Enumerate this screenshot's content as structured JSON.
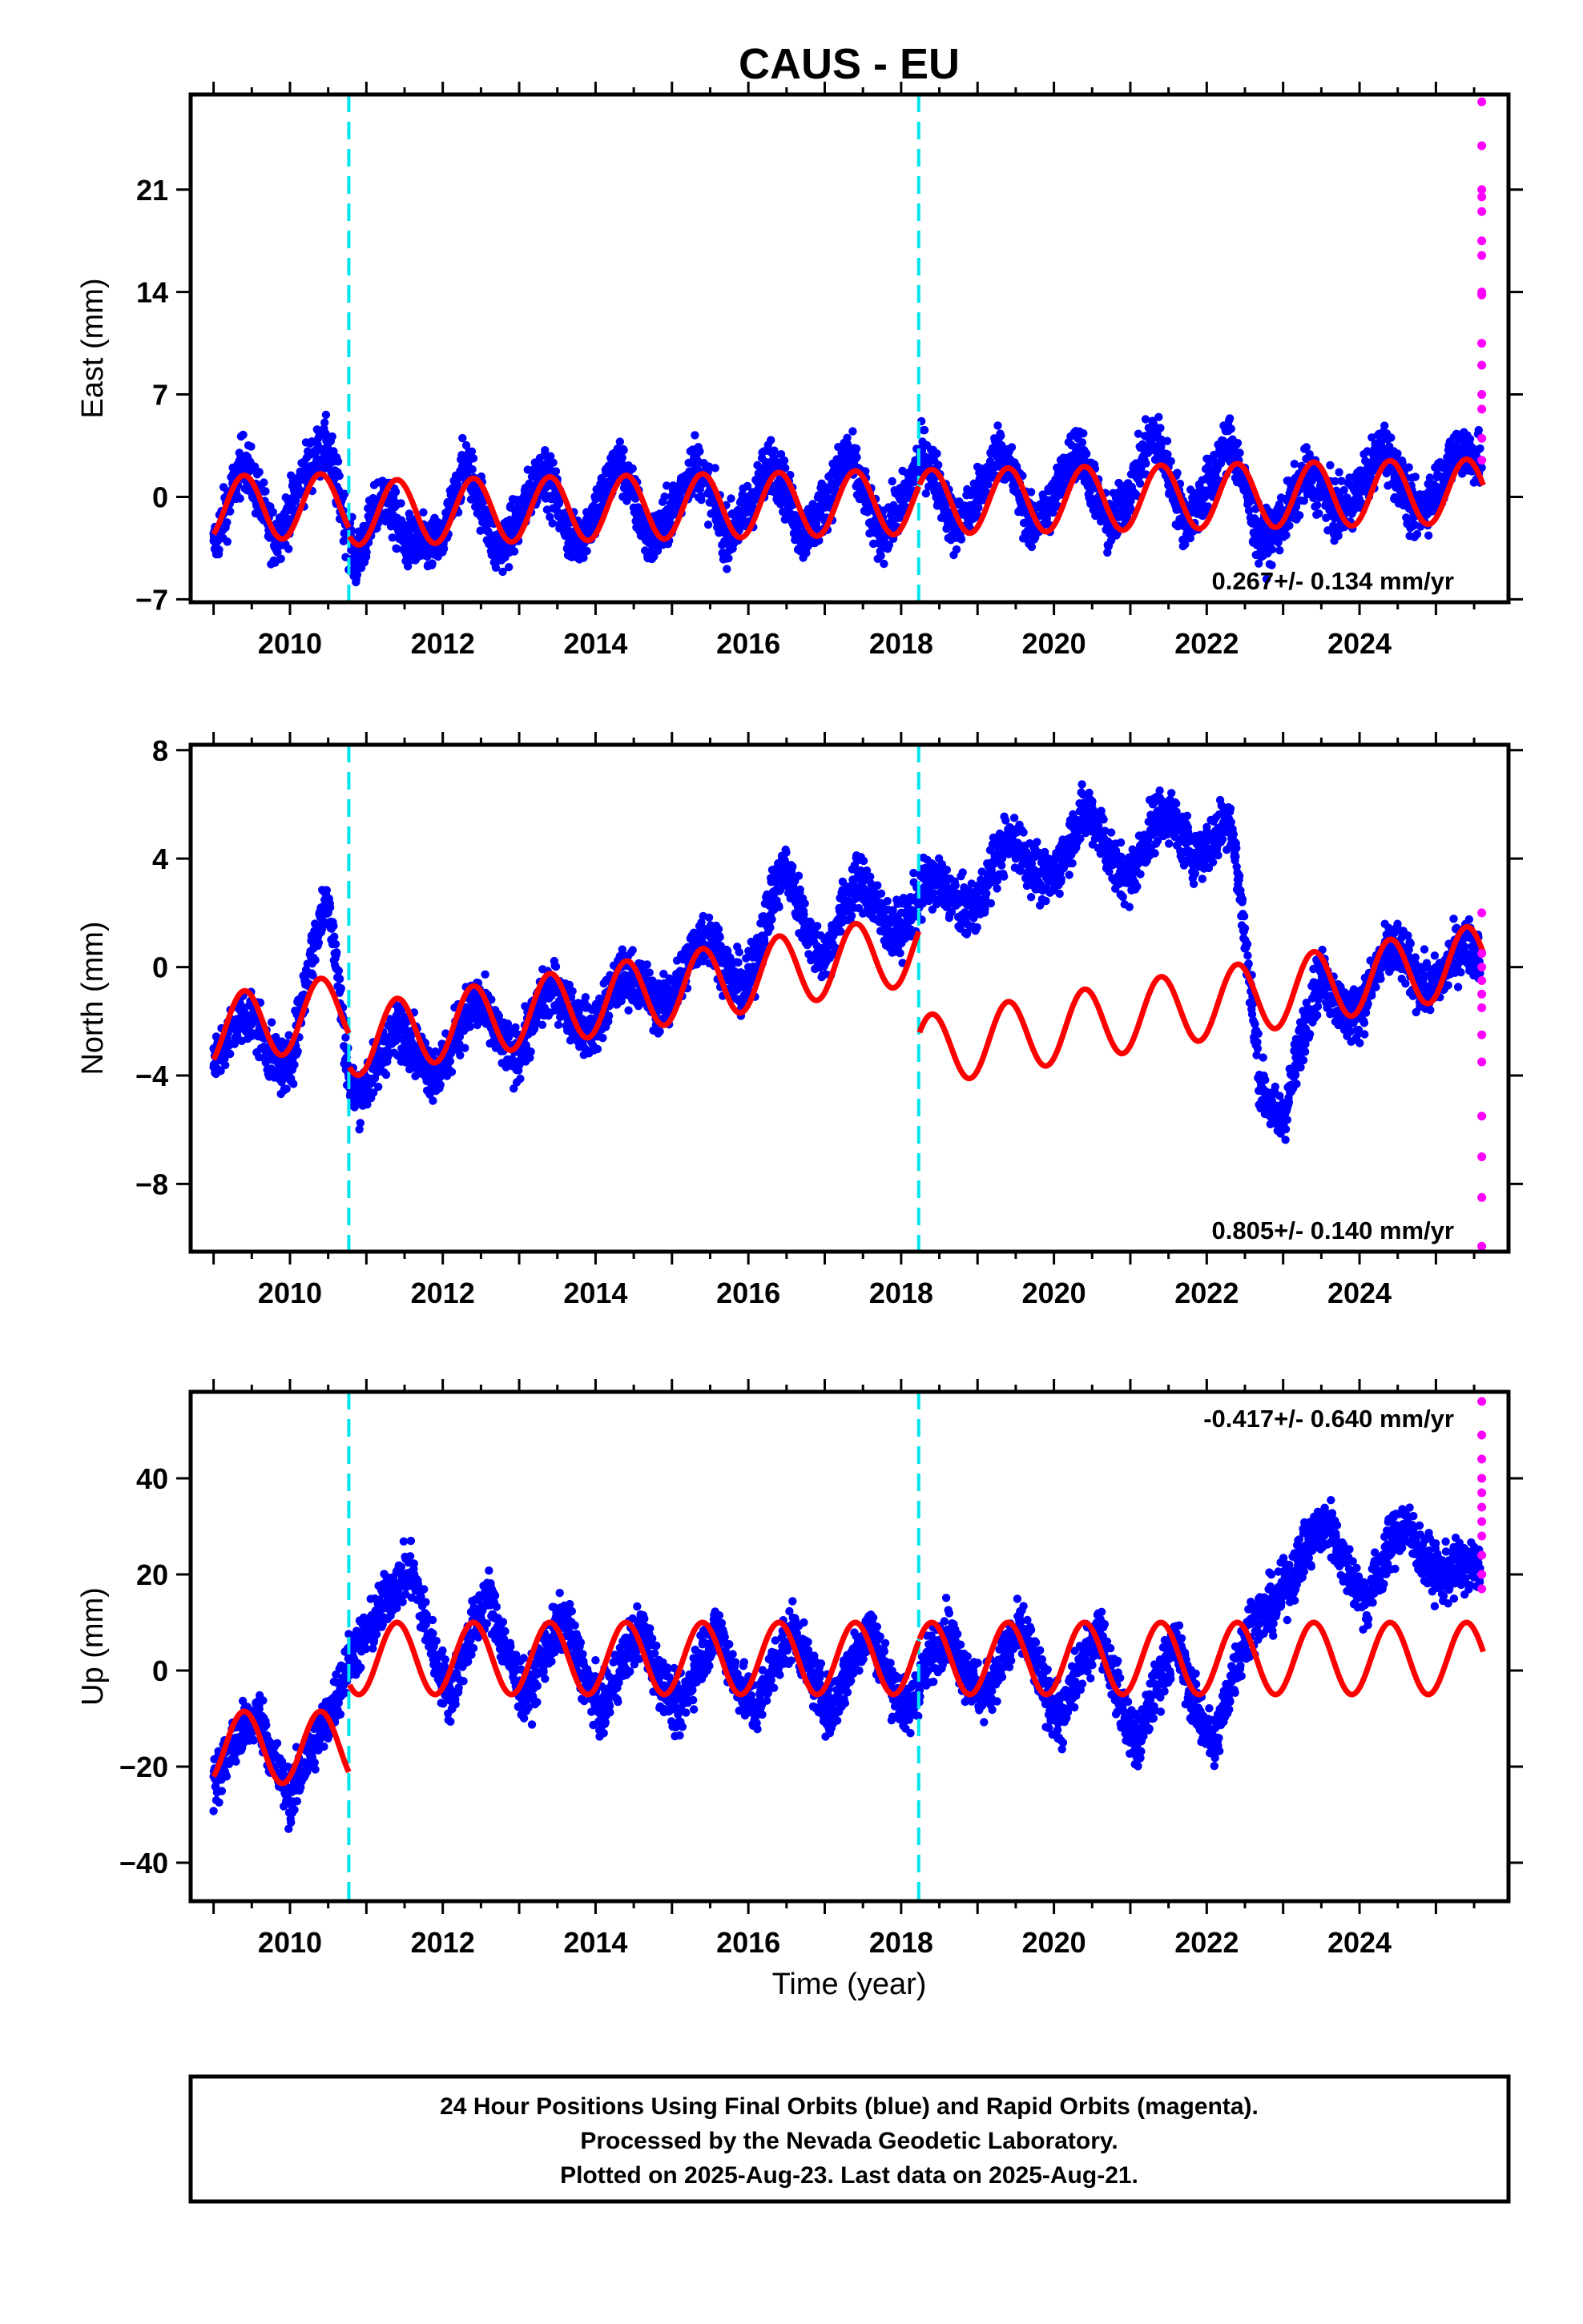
{
  "title": "CAUS - EU",
  "colors": {
    "final": "#0000ff",
    "rapid": "#ff00ff",
    "model": "#ff0000",
    "break": "#00e5ee",
    "frame": "#000000"
  },
  "x_axis": {
    "label": "Time (year)",
    "range": [
      2008.7,
      2025.95
    ],
    "ticks": [
      2010,
      2012,
      2014,
      2016,
      2018,
      2020,
      2022,
      2024
    ],
    "tick_labels": [
      "2010",
      "2012",
      "2014",
      "2016",
      "2018",
      "2020",
      "2022",
      "2024"
    ],
    "minor_step": 0.5
  },
  "breaks": [
    2010.77,
    2018.23
  ],
  "footer": {
    "line1": "24 Hour Positions Using Final Orbits (blue) and Rapid Orbits (magenta).",
    "line2": "Processed by the Nevada Geodetic Laboratory.",
    "line3": "Plotted on 2025-Aug-23. Last data on 2025-Aug-21."
  },
  "chart_data": [
    {
      "type": "scatter",
      "component": "East",
      "ylabel": "East (mm)",
      "ylim": [
        -7.2,
        27.5
      ],
      "yticks": [
        -7,
        0,
        7,
        14,
        21
      ],
      "ytick_labels": [
        "−7",
        "0",
        "7",
        "14",
        "21"
      ],
      "rate_text": "0.267+/- 0.134 mm/yr",
      "rate_position": "bottom-right",
      "series": [
        {
          "name": "Final Orbits",
          "color": "blue",
          "x": [
            2009.0,
            2009.4,
            2009.8,
            2010.2,
            2010.5,
            2010.85,
            2011.2,
            2011.5,
            2012.0,
            2012.3,
            2012.7,
            2013.3,
            2013.7,
            2014.3,
            2014.7,
            2015.3,
            2015.7,
            2016.3,
            2016.7,
            2017.3,
            2017.7,
            2018.3,
            2018.7,
            2019.3,
            2019.7,
            2020.3,
            2020.7,
            2021.3,
            2021.7,
            2022.3,
            2022.7,
            2023.3,
            2023.7,
            2024.3,
            2024.7,
            2025.3,
            2025.6
          ],
          "y": [
            -3,
            2,
            -2.5,
            1.5,
            3,
            -4,
            0,
            -3.5,
            -2.5,
            2,
            -3.5,
            1.5,
            -3,
            2,
            -3,
            2,
            -2.5,
            2,
            -2.5,
            2.5,
            -2.5,
            2.5,
            -2,
            3,
            -2,
            3,
            -2,
            4,
            -1.5,
            3.5,
            -3,
            1,
            -1,
            3,
            -1,
            3,
            2
          ]
        },
        {
          "name": "Rapid Orbits",
          "color": "magenta",
          "x": [
            2025.6,
            2025.6,
            2025.6,
            2025.6,
            2025.6,
            2025.6,
            2025.6,
            2025.6,
            2025.6,
            2025.6,
            2025.6,
            2025.6,
            2025.6,
            2025.6,
            2025.6
          ],
          "y": [
            27,
            24,
            21,
            20.5,
            19.5,
            17.5,
            16.5,
            14,
            13.8,
            10.5,
            9,
            7,
            6,
            4,
            2.5
          ]
        }
      ],
      "model": {
        "name": "Model fit",
        "offset": -0.8,
        "trend_mm_per_yr": 0.1,
        "annual_amp": 2.2,
        "steps": [
          {
            "year": 2010.77,
            "size": -0.5
          },
          {
            "year": 2018.23,
            "size": 0
          }
        ]
      }
    },
    {
      "type": "scatter",
      "component": "North",
      "ylabel": "North (mm)",
      "ylim": [
        -10.5,
        8.2
      ],
      "yticks": [
        -8,
        -4,
        0,
        4,
        8
      ],
      "ytick_labels": [
        "−8",
        "−4",
        "0",
        "4",
        "8"
      ],
      "rate_text": "0.805+/- 0.140 mm/yr",
      "rate_position": "bottom-right",
      "series": [
        {
          "name": "Final Orbits",
          "color": "blue",
          "x": [
            2009.0,
            2009.5,
            2010.0,
            2010.5,
            2010.8,
            2011.5,
            2012.0,
            2012.5,
            2013.0,
            2013.5,
            2014.0,
            2014.5,
            2015.0,
            2015.5,
            2016.0,
            2016.5,
            2017.0,
            2017.5,
            2018.0,
            2018.5,
            2019.0,
            2019.5,
            2020.0,
            2020.5,
            2021.0,
            2021.5,
            2022.0,
            2022.3,
            2022.7,
            2023.0,
            2023.5,
            2024.0,
            2024.5,
            2025.0,
            2025.6
          ],
          "y": [
            -3,
            -2.5,
            -3,
            2,
            -4,
            -3,
            -3,
            -2,
            -2.5,
            -1.5,
            -1.5,
            -1,
            -0.5,
            0.5,
            0,
            3,
            1,
            2.5,
            2,
            2.5,
            3,
            4,
            4,
            5,
            4,
            5,
            5,
            5,
            -4,
            -5,
            -1,
            -1,
            0,
            0,
            0
          ]
        },
        {
          "name": "Rapid Orbits",
          "color": "magenta",
          "x": [
            2025.6,
            2025.6,
            2025.6,
            2025.6,
            2025.6,
            2025.6,
            2025.6,
            2025.6,
            2025.6,
            2025.6,
            2025.6,
            2025.6
          ],
          "y": [
            2,
            0.5,
            0,
            -0.5,
            -1,
            -1.5,
            -2.5,
            -3.5,
            -5.5,
            -7,
            -8.5,
            -10.3
          ]
        }
      ],
      "model": {
        "name": "Model fit",
        "offset": -2.5,
        "trend_mm_per_yr": 0.46,
        "annual_amp": 1.3,
        "steps": [
          {
            "year": 2010.77,
            "size": -1.2
          },
          {
            "year": 2018.23,
            "size": -3.8
          }
        ]
      }
    },
    {
      "type": "scatter",
      "component": "Up",
      "ylabel": "Up (mm)",
      "ylim": [
        -48,
        58
      ],
      "yticks": [
        -40,
        -20,
        0,
        20,
        40
      ],
      "ytick_labels": [
        "−40",
        "−20",
        "0",
        "20",
        "40"
      ],
      "rate_text": "-0.417+/- 0.640 mm/yr",
      "rate_position": "top-right",
      "series": [
        {
          "name": "Final Orbits",
          "color": "blue",
          "x": [
            2009.0,
            2009.6,
            2010.0,
            2010.5,
            2010.8,
            2011.6,
            2012.1,
            2012.6,
            2013.1,
            2013.6,
            2014.1,
            2014.6,
            2015.1,
            2015.6,
            2016.1,
            2016.6,
            2017.1,
            2017.6,
            2018.1,
            2018.6,
            2019.1,
            2019.6,
            2020.1,
            2020.6,
            2021.1,
            2021.6,
            2022.1,
            2022.6,
            2023.1,
            2023.6,
            2024.1,
            2024.6,
            2025.1,
            2025.6
          ],
          "y": [
            -22,
            -10,
            -25,
            -12,
            5,
            20,
            -5,
            15,
            -5,
            10,
            -8,
            8,
            -8,
            8,
            -8,
            8,
            -8,
            8,
            -8,
            8,
            -5,
            8,
            -10,
            8,
            -15,
            5,
            -15,
            10,
            20,
            30,
            15,
            30,
            20,
            20
          ]
        },
        {
          "name": "Rapid Orbits",
          "color": "magenta",
          "x": [
            2025.6,
            2025.6,
            2025.6,
            2025.6,
            2025.6,
            2025.6,
            2025.6,
            2025.6,
            2025.6,
            2025.6,
            2025.6
          ],
          "y": [
            56,
            49,
            44,
            40,
            37,
            34,
            31,
            28,
            24,
            20,
            17
          ]
        }
      ],
      "model": {
        "name": "Model fit",
        "offset": -16,
        "trend_mm_per_yr": 0,
        "annual_amp": 7.5,
        "steps": [
          {
            "year": 2010.77,
            "size": 18.5
          },
          {
            "year": 2018.23,
            "size": 0
          }
        ]
      }
    }
  ]
}
